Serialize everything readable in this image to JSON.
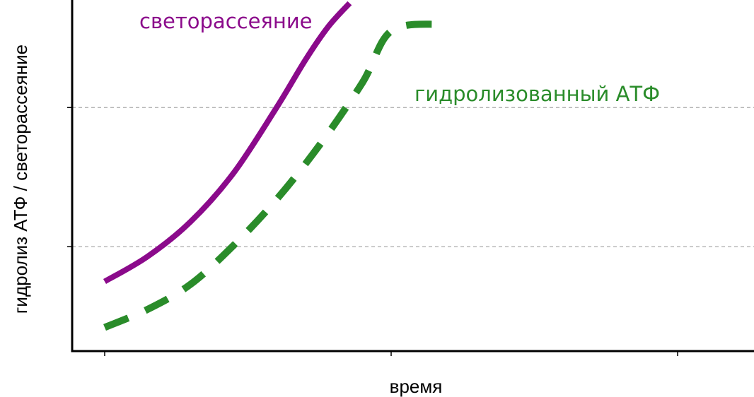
{
  "chart_data": {
    "type": "line",
    "xlabel": "время",
    "ylabel": "гидролиз АТФ / светорассеяние",
    "xlim": [
      0,
      2.25
    ],
    "ylim": [
      0,
      2.5
    ],
    "x_ticks": [
      0,
      1,
      2
    ],
    "y_gridlines": [
      0.75,
      1.75
    ],
    "grid": "horizontal dashed",
    "series": [
      {
        "name": "светорассеяние",
        "color": "#8b0a8b",
        "style": "solid",
        "points": [
          [
            0,
            0.5
          ],
          [
            0.15,
            0.68
          ],
          [
            0.3,
            0.93
          ],
          [
            0.45,
            1.28
          ],
          [
            0.6,
            1.75
          ],
          [
            0.7,
            2.09
          ],
          [
            0.78,
            2.33
          ],
          [
            0.855,
            2.5
          ]
        ]
      },
      {
        "name": "гидролизованный АТФ",
        "color": "#2a8c2a",
        "style": "dashed",
        "points": [
          [
            0,
            0.17
          ],
          [
            0.15,
            0.3
          ],
          [
            0.3,
            0.48
          ],
          [
            0.45,
            0.76
          ],
          [
            0.6,
            1.09
          ],
          [
            0.75,
            1.48
          ],
          [
            0.9,
            1.93
          ],
          [
            1.0,
            2.3
          ],
          [
            1.17,
            2.35
          ]
        ]
      }
    ]
  }
}
